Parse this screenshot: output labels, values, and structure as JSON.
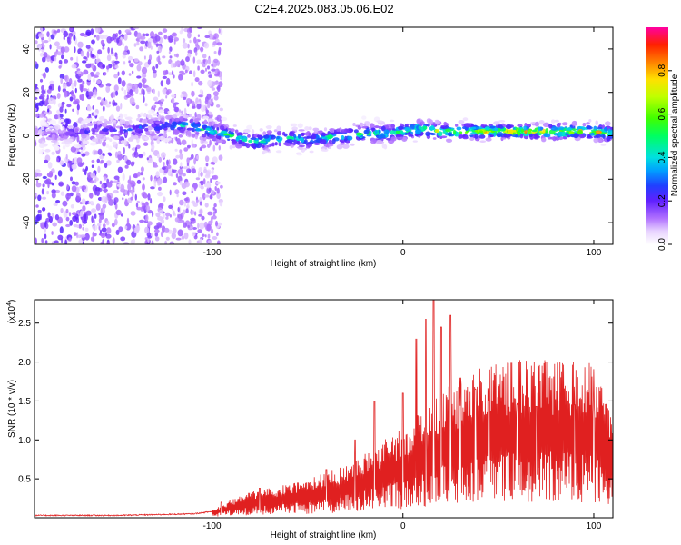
{
  "title": "C2E4.2025.083.05.06.E02",
  "chart_data": [
    {
      "type": "heatmap",
      "xlabel": "Height of straight line (km)",
      "ylabel": "Frequency (Hz)",
      "xlim": [
        -193,
        110
      ],
      "ylim": [
        -50,
        50
      ],
      "xticks": [
        -100,
        0,
        100
      ],
      "yticks": [
        -40,
        -20,
        0,
        20,
        40
      ],
      "description_series": {
        "name": "",
        "ridge_points": [
          {
            "x": -190,
            "y": 0,
            "amp": 0.15
          },
          {
            "x": -170,
            "y": 1,
            "amp": 0.2
          },
          {
            "x": -160,
            "y": 3,
            "amp": 0.3
          },
          {
            "x": -150,
            "y": 2,
            "amp": 0.25
          },
          {
            "x": -140,
            "y": 3,
            "amp": 0.3
          },
          {
            "x": -130,
            "y": 4,
            "amp": 0.35
          },
          {
            "x": -115,
            "y": 5,
            "amp": 0.45
          },
          {
            "x": -100,
            "y": 2,
            "amp": 0.55
          },
          {
            "x": -90,
            "y": 0,
            "amp": 0.55
          },
          {
            "x": -80,
            "y": -3,
            "amp": 0.5
          },
          {
            "x": -70,
            "y": -2,
            "amp": 0.5
          },
          {
            "x": -60,
            "y": -1,
            "amp": 0.5
          },
          {
            "x": -50,
            "y": -2,
            "amp": 0.45
          },
          {
            "x": -40,
            "y": -1,
            "amp": 0.5
          },
          {
            "x": -30,
            "y": 0,
            "amp": 0.55
          },
          {
            "x": -20,
            "y": 1,
            "amp": 0.55
          },
          {
            "x": -10,
            "y": 1,
            "amp": 0.55
          },
          {
            "x": 0,
            "y": 2,
            "amp": 0.6
          },
          {
            "x": 10,
            "y": 3,
            "amp": 0.65
          },
          {
            "x": 20,
            "y": 2,
            "amp": 0.7
          },
          {
            "x": 30,
            "y": 2,
            "amp": 0.75
          },
          {
            "x": 40,
            "y": 2,
            "amp": 0.85
          },
          {
            "x": 50,
            "y": 2,
            "amp": 0.9
          },
          {
            "x": 60,
            "y": 2,
            "amp": 0.9
          },
          {
            "x": 70,
            "y": 2,
            "amp": 0.85
          },
          {
            "x": 80,
            "y": 2,
            "amp": 0.85
          },
          {
            "x": 90,
            "y": 2,
            "amp": 0.85
          },
          {
            "x": 100,
            "y": 2,
            "amp": 0.8
          },
          {
            "x": 110,
            "y": 1,
            "amp": 0.7
          }
        ],
        "noise_region_x": [
          -193,
          -95
        ]
      },
      "colorbar": {
        "label": "Normalized spectral amplitude",
        "range": [
          0,
          1
        ],
        "ticks": [
          0.0,
          0.2,
          0.4,
          0.6,
          0.8
        ]
      }
    },
    {
      "type": "line",
      "xlabel": "Height of straight line (km)",
      "ylabel": "SNR (10 * v/v)",
      "yunit_note": "(x10",
      "yunit_exp": "4",
      "yunit_close": ")",
      "xlim": [
        -193,
        110
      ],
      "ylim": [
        0,
        2.8
      ],
      "xticks": [
        -100,
        0,
        100
      ],
      "yticks": [
        0.5,
        1.0,
        1.5,
        2.0,
        2.5
      ],
      "color": "#e02020",
      "envelope": [
        {
          "x": -193,
          "y": 0.03
        },
        {
          "x": -150,
          "y": 0.03
        },
        {
          "x": -110,
          "y": 0.05
        },
        {
          "x": -100,
          "y": 0.08
        },
        {
          "x": -90,
          "y": 0.15
        },
        {
          "x": -80,
          "y": 0.22
        },
        {
          "x": -70,
          "y": 0.25
        },
        {
          "x": -60,
          "y": 0.28
        },
        {
          "x": -50,
          "y": 0.32
        },
        {
          "x": -40,
          "y": 0.38
        },
        {
          "x": -30,
          "y": 0.45
        },
        {
          "x": -20,
          "y": 0.55
        },
        {
          "x": -10,
          "y": 0.65
        },
        {
          "x": 0,
          "y": 0.75
        },
        {
          "x": 10,
          "y": 0.9
        },
        {
          "x": 20,
          "y": 1.05
        },
        {
          "x": 30,
          "y": 1.15
        },
        {
          "x": 40,
          "y": 1.25
        },
        {
          "x": 50,
          "y": 1.3
        },
        {
          "x": 60,
          "y": 1.32
        },
        {
          "x": 70,
          "y": 1.32
        },
        {
          "x": 80,
          "y": 1.3
        },
        {
          "x": 90,
          "y": 1.3
        },
        {
          "x": 100,
          "y": 1.28
        },
        {
          "x": 105,
          "y": 1.05
        },
        {
          "x": 110,
          "y": 0.85
        }
      ],
      "peaks": [
        {
          "x": -95,
          "y": 0.2
        },
        {
          "x": -75,
          "y": 0.38
        },
        {
          "x": -55,
          "y": 0.45
        },
        {
          "x": -40,
          "y": 0.62
        },
        {
          "x": -25,
          "y": 1.0
        },
        {
          "x": -15,
          "y": 1.5
        },
        {
          "x": -8,
          "y": 1.72
        },
        {
          "x": 0,
          "y": 1.6
        },
        {
          "x": 7,
          "y": 2.3
        },
        {
          "x": 12,
          "y": 2.55
        },
        {
          "x": 16,
          "y": 2.8
        },
        {
          "x": 20,
          "y": 2.45
        },
        {
          "x": 25,
          "y": 2.6
        },
        {
          "x": 30,
          "y": 1.8
        },
        {
          "x": 38,
          "y": 1.65
        },
        {
          "x": 45,
          "y": 1.5
        },
        {
          "x": 60,
          "y": 1.45
        },
        {
          "x": 70,
          "y": 1.43
        },
        {
          "x": 90,
          "y": 1.45
        },
        {
          "x": 100,
          "y": 1.5
        }
      ]
    }
  ]
}
